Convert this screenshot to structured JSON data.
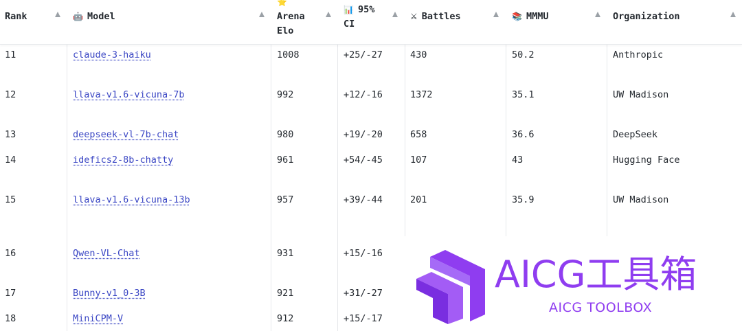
{
  "columns": [
    {
      "icon": "",
      "label": "Rank"
    },
    {
      "icon": "robot-icon",
      "icon_glyph": "🤖",
      "label": "Model"
    },
    {
      "icon": "star-icon",
      "icon_glyph": "⭐",
      "label": "Arena Elo",
      "label_line1": "Arena",
      "label_line2": "Elo"
    },
    {
      "icon": "bar-chart-icon",
      "icon_glyph": "📊",
      "label": "95% CI",
      "label_line1": "95%",
      "label_line2": "CI"
    },
    {
      "icon": "swords-icon",
      "icon_glyph": "⚔",
      "label": "Battles"
    },
    {
      "icon": "books-icon",
      "icon_glyph": "📚",
      "label": "MMMU"
    },
    {
      "icon": "",
      "label": "Organization"
    }
  ],
  "rows": [
    {
      "rank": "11",
      "model": "claude-3-haiku",
      "elo": "1008",
      "ci": "+25/-27",
      "battles": "430",
      "mmmu": "50.2",
      "org": "Anthropic"
    },
    {
      "rank": "12",
      "model": "llava-v1.6-vicuna-7b",
      "elo": "992",
      "ci": "+12/-16",
      "battles": "1372",
      "mmmu": "35.1",
      "org": "UW Madison"
    },
    {
      "rank": "13",
      "model": "deepseek-vl-7b-chat",
      "elo": "980",
      "ci": "+19/-20",
      "battles": "658",
      "mmmu": "36.6",
      "org": "DeepSeek"
    },
    {
      "rank": "14",
      "model": "idefics2-8b-chatty",
      "elo": "961",
      "ci": "+54/-45",
      "battles": "107",
      "mmmu": "43",
      "org": "Hugging Face"
    },
    {
      "rank": "15",
      "model": "llava-v1.6-vicuna-13b",
      "elo": "957",
      "ci": "+39/-44",
      "battles": "201",
      "mmmu": "35.9",
      "org": "UW Madison"
    },
    {
      "rank": "16",
      "model": "Qwen-VL-Chat",
      "elo": "931",
      "ci": "+15/-16"
    },
    {
      "rank": "17",
      "model": "Bunny-v1_0-3B",
      "elo": "921",
      "ci": "+31/-27"
    },
    {
      "rank": "18",
      "model": "MiniCPM-V",
      "elo": "912",
      "ci": "+15/-17"
    }
  ],
  "watermark": {
    "title": "AICG工具箱",
    "subtitle": "AICG TOOLBOX",
    "color": "#8f3df0"
  },
  "colors": {
    "link": "#3a46c4",
    "grid": "#e6e8eb",
    "sort_arrow": "#9aa0a6"
  }
}
